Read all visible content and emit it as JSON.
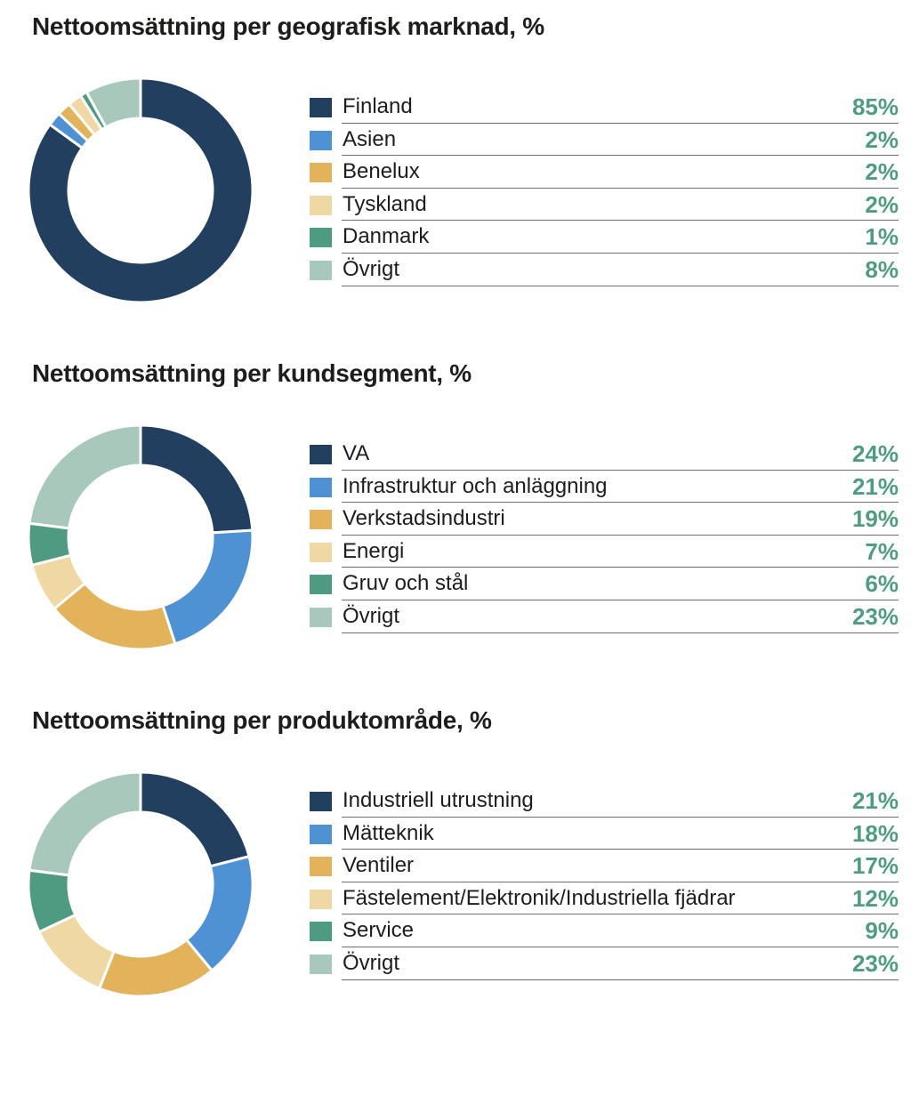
{
  "palette": {
    "navy": "#223f5f",
    "blue": "#4e92d3",
    "gold": "#e2b35a",
    "cream": "#efd8a4",
    "green": "#4e9b82",
    "mint": "#a8c8bc",
    "value": "#4f9c80"
  },
  "chart_data": [
    {
      "type": "pie",
      "title": "Nettoomsättning per geografisk marknad, %",
      "categories": [
        "Finland",
        "Asien",
        "Benelux",
        "Tyskland",
        "Danmark",
        "Övrigt"
      ],
      "values": [
        85,
        2,
        2,
        2,
        1,
        8
      ],
      "labels": [
        "85%",
        "2%",
        "2%",
        "2%",
        "1%",
        "8%"
      ],
      "colors": [
        "#223f5f",
        "#4e92d3",
        "#e2b35a",
        "#efd8a4",
        "#4e9b82",
        "#a8c8bc"
      ]
    },
    {
      "type": "pie",
      "title": "Nettoomsättning per kundsegment, %",
      "categories": [
        "VA",
        "Infrastruktur och anläggning",
        "Verkstadsindustri",
        "Energi",
        "Gruv och stål",
        "Övrigt"
      ],
      "values": [
        24,
        21,
        19,
        7,
        6,
        23
      ],
      "labels": [
        "24%",
        "21%",
        "19%",
        "7%",
        "6%",
        "23%"
      ],
      "colors": [
        "#223f5f",
        "#4e92d3",
        "#e2b35a",
        "#efd8a4",
        "#4e9b82",
        "#a8c8bc"
      ]
    },
    {
      "type": "pie",
      "title": "Nettoomsättning per produktområde, %",
      "categories": [
        "Industriell utrustning",
        "Mätteknik",
        "Ventiler",
        "Fästelement/Elektronik/Industriella fjädrar",
        "Service",
        "Övrigt"
      ],
      "values": [
        21,
        18,
        17,
        12,
        9,
        23
      ],
      "labels": [
        "21%",
        "18%",
        "17%",
        "12%",
        "9%",
        "23%"
      ],
      "colors": [
        "#223f5f",
        "#4e92d3",
        "#e2b35a",
        "#efd8a4",
        "#4e9b82",
        "#a8c8bc"
      ]
    }
  ]
}
